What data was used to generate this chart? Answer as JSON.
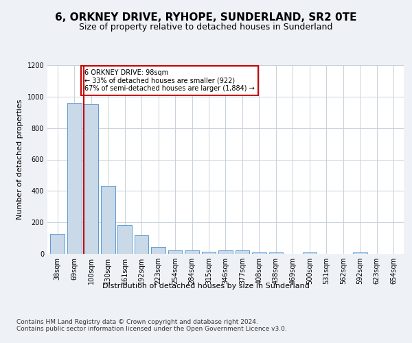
{
  "title": "6, ORKNEY DRIVE, RYHOPE, SUNDERLAND, SR2 0TE",
  "subtitle": "Size of property relative to detached houses in Sunderland",
  "xlabel": "Distribution of detached houses by size in Sunderland",
  "ylabel": "Number of detached properties",
  "categories": [
    "38sqm",
    "69sqm",
    "100sqm",
    "130sqm",
    "161sqm",
    "192sqm",
    "223sqm",
    "254sqm",
    "284sqm",
    "315sqm",
    "346sqm",
    "377sqm",
    "408sqm",
    "438sqm",
    "469sqm",
    "500sqm",
    "531sqm",
    "562sqm",
    "592sqm",
    "623sqm",
    "654sqm"
  ],
  "values": [
    125,
    960,
    950,
    430,
    185,
    120,
    45,
    20,
    20,
    15,
    20,
    20,
    10,
    10,
    0,
    10,
    0,
    0,
    10,
    0,
    0
  ],
  "bar_color": "#c9d9e8",
  "bar_edge_color": "#5b9bd5",
  "highlight_index": 2,
  "highlight_line_color": "#cc0000",
  "annotation_line1": "6 ORKNEY DRIVE: 98sqm",
  "annotation_line2": "← 33% of detached houses are smaller (922)",
  "annotation_line3": "67% of semi-detached houses are larger (1,884) →",
  "annotation_box_color": "#ffffff",
  "annotation_box_edge_color": "#cc0000",
  "ylim": [
    0,
    1200
  ],
  "yticks": [
    0,
    200,
    400,
    600,
    800,
    1000,
    1200
  ],
  "footer": "Contains HM Land Registry data © Crown copyright and database right 2024.\nContains public sector information licensed under the Open Government Licence v3.0.",
  "bg_color": "#eef2f7",
  "plot_bg_color": "#ffffff",
  "grid_color": "#c8d0da",
  "title_fontsize": 11,
  "subtitle_fontsize": 9,
  "axis_label_fontsize": 8,
  "tick_fontsize": 7,
  "footer_fontsize": 6.5
}
